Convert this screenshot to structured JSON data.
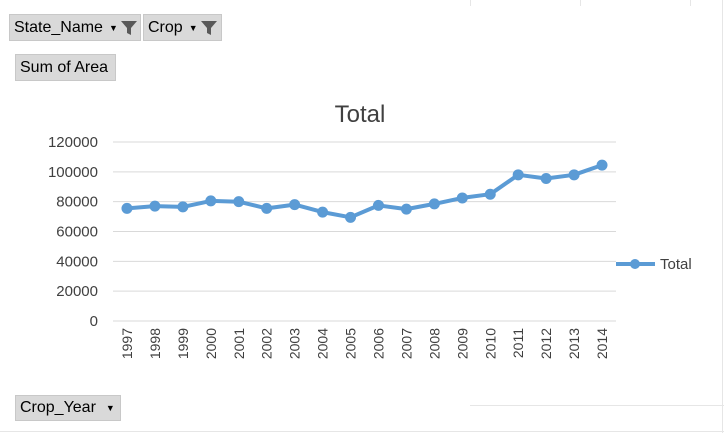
{
  "pivot_fields": {
    "filters": [
      {
        "label": "State_Name"
      },
      {
        "label": "Crop"
      }
    ],
    "values_label": "Sum of Area",
    "axis_label": "Crop_Year"
  },
  "colors": {
    "series": "#5b9bd5",
    "button_bg": "#d9d9d9",
    "grid": "#d9d9d9"
  },
  "chart_data": {
    "type": "line",
    "title": "Total",
    "categories": [
      "1997",
      "1998",
      "1999",
      "2000",
      "2001",
      "2002",
      "2003",
      "2004",
      "2005",
      "2006",
      "2007",
      "2008",
      "2009",
      "2010",
      "2011",
      "2012",
      "2013",
      "2014"
    ],
    "series": [
      {
        "name": "Total",
        "values": [
          75500,
          77000,
          76500,
          80500,
          80000,
          75500,
          78000,
          73000,
          69500,
          77500,
          75000,
          78500,
          82500,
          85000,
          98000,
          95500,
          98000,
          104500
        ]
      }
    ],
    "yticks": [
      "0",
      "20000",
      "40000",
      "60000",
      "80000",
      "100000",
      "120000"
    ],
    "ylim": [
      0,
      120000
    ],
    "grid": true,
    "legend": "right"
  }
}
